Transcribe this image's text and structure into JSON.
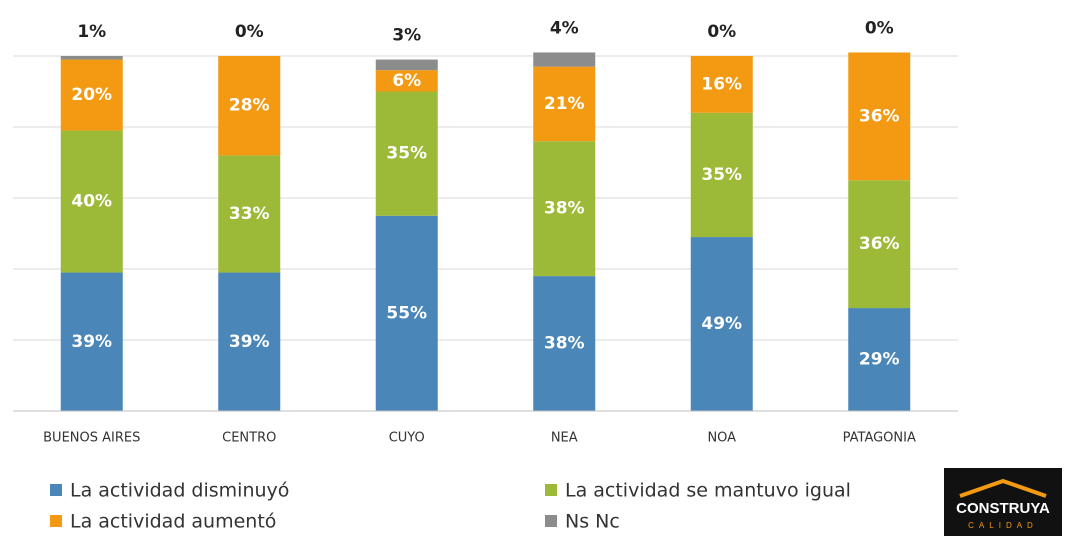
{
  "chart_data": {
    "type": "stacked_bar",
    "categories": [
      "BUENOS AIRES",
      "CENTRO",
      "CUYO",
      "NEA",
      "NOA",
      "PATAGONIA"
    ],
    "series": [
      {
        "name": "La actividad disminuyó",
        "color": "#4a86b8",
        "values": [
          39,
          39,
          55,
          38,
          49,
          29
        ],
        "value_labels": [
          "39%",
          "39%",
          "55%",
          "38%",
          "49%",
          "29%"
        ]
      },
      {
        "name": "La actividad se mantuvo igual",
        "color": "#9cba38",
        "values": [
          40,
          33,
          35,
          38,
          35,
          36
        ],
        "value_labels": [
          "40%",
          "33%",
          "35%",
          "38%",
          "35%",
          "36%"
        ]
      },
      {
        "name": "La actividad aumentó",
        "color": "#f39a12",
        "values": [
          20,
          28,
          6,
          21,
          16,
          36
        ],
        "value_labels": [
          "20%",
          "28%",
          "6%",
          "21%",
          "16%",
          "36%"
        ]
      },
      {
        "name": "Ns Nc",
        "color": "#8c8c8c",
        "values": [
          1,
          0,
          3,
          4,
          0,
          0
        ],
        "value_labels": [
          "1%",
          "0%",
          "3%",
          "4%",
          "0%",
          "0%"
        ]
      }
    ],
    "ylim": [
      0,
      100
    ],
    "yticks": [
      0,
      20,
      40,
      60,
      80,
      100
    ],
    "grid": true
  },
  "logo": {
    "name": "CONSTRUYA",
    "tagline": "CALIDAD"
  }
}
